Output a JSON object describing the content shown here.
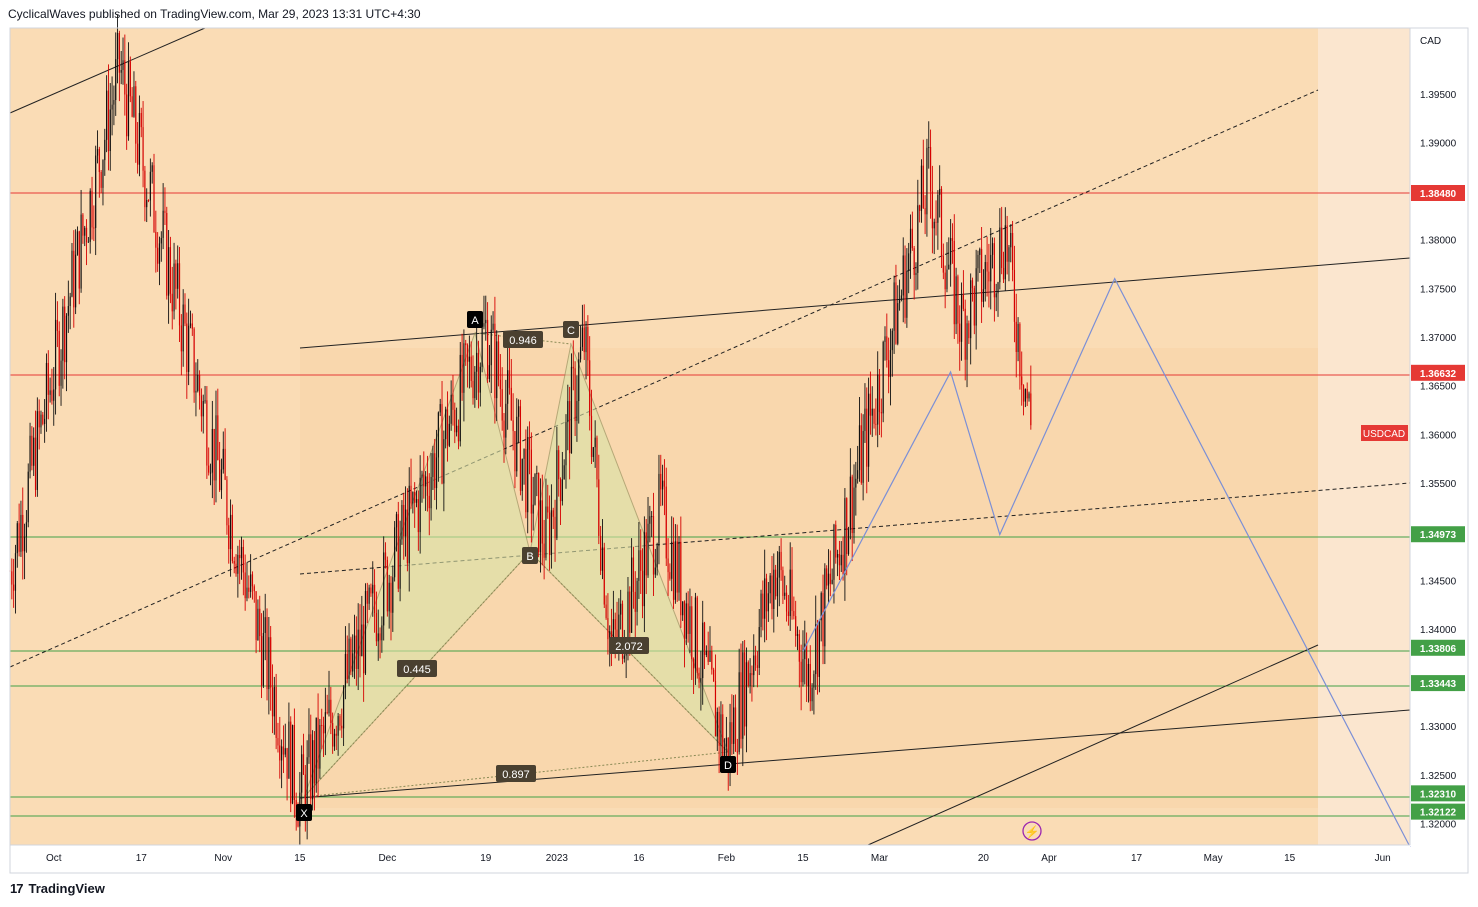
{
  "header": {
    "publisher": "CyclicalWaves published on TradingView.com, Mar 29, 2023 13:31 UTC+4:30"
  },
  "footer": {
    "brand": "TradingView",
    "logo": "tradingview-logo"
  },
  "axis": {
    "currency": "CAD",
    "price_ticks": [
      "1.39500",
      "1.39000",
      "1.38000",
      "1.37500",
      "1.37000",
      "1.36500",
      "1.36000",
      "1.35500",
      "1.34500",
      "1.34000",
      "1.33000",
      "1.32500",
      "1.32000"
    ],
    "time_ticks": [
      "Oct",
      "17",
      "Nov",
      "15",
      "Dec",
      "19",
      "2023",
      "16",
      "Feb",
      "15",
      "Mar",
      "20",
      "Apr",
      "17",
      "May",
      "15",
      "Jun"
    ]
  },
  "levels": [
    {
      "label": "1.38480",
      "color": "#e53935"
    },
    {
      "label": "1.36632",
      "color": "#e53935"
    },
    {
      "label": "1.34973",
      "color": "#43a047"
    },
    {
      "label": "1.33806",
      "color": "#43a047"
    },
    {
      "label": "1.33443",
      "color": "#43a047"
    },
    {
      "label": "1.32310",
      "color": "#43a047"
    },
    {
      "label": "1.32122",
      "color": "#43a047"
    }
  ],
  "symbol_label": {
    "text": "USDCAD",
    "color": "#e53935"
  },
  "pattern": {
    "points": [
      "X",
      "A",
      "B",
      "C",
      "D"
    ],
    "ratios": [
      "0.946",
      "0.445",
      "0.897",
      "2.072"
    ]
  },
  "chart_data": {
    "type": "candlestick",
    "symbol": "USDCAD",
    "ylabel": "CAD",
    "ylim": [
      1.3175,
      1.4005
    ],
    "xlim": [
      "2022-09-23",
      "2023-06-06"
    ],
    "candles_summary": [
      {
        "date": "2022-09-23",
        "price": 1.346
      },
      {
        "date": "2022-10-13",
        "price": 1.3977
      },
      {
        "date": "2022-11-15",
        "price": 1.3226
      },
      {
        "date": "2022-12-19",
        "price": 1.3706
      },
      {
        "date": "2022-12-30",
        "price": 1.3488
      },
      {
        "date": "2023-01-06",
        "price": 1.3695
      },
      {
        "date": "2023-01-11",
        "price": 1.3375
      },
      {
        "date": "2023-01-20",
        "price": 1.3521
      },
      {
        "date": "2023-02-01",
        "price": 1.3273
      },
      {
        "date": "2023-02-10",
        "price": 1.3466
      },
      {
        "date": "2023-02-16",
        "price": 1.3355
      },
      {
        "date": "2023-03-10",
        "price": 1.3862
      },
      {
        "date": "2023-03-16",
        "price": 1.3714
      },
      {
        "date": "2023-03-24",
        "price": 1.3805
      },
      {
        "date": "2023-03-29",
        "price": 1.3595
      }
    ],
    "projection": [
      {
        "date": "2023-02-15",
        "price": 1.3377
      },
      {
        "date": "2023-03-14",
        "price": 1.3664
      },
      {
        "date": "2023-03-23",
        "price": 1.3497
      },
      {
        "date": "2023-04-13",
        "price": 1.376
      },
      {
        "date": "2023-06-06",
        "price": 1.3176
      }
    ],
    "harmonic": {
      "X": {
        "date": "2022-11-16",
        "price": 1.3224
      },
      "A": {
        "date": "2022-12-19",
        "price": 1.3711
      },
      "B": {
        "date": "2022-12-30",
        "price": 1.349
      },
      "C": {
        "date": "2023-01-08",
        "price": 1.3694
      },
      "D": {
        "date": "2023-02-01",
        "price": 1.3282
      }
    },
    "last_price": 1.36
  }
}
